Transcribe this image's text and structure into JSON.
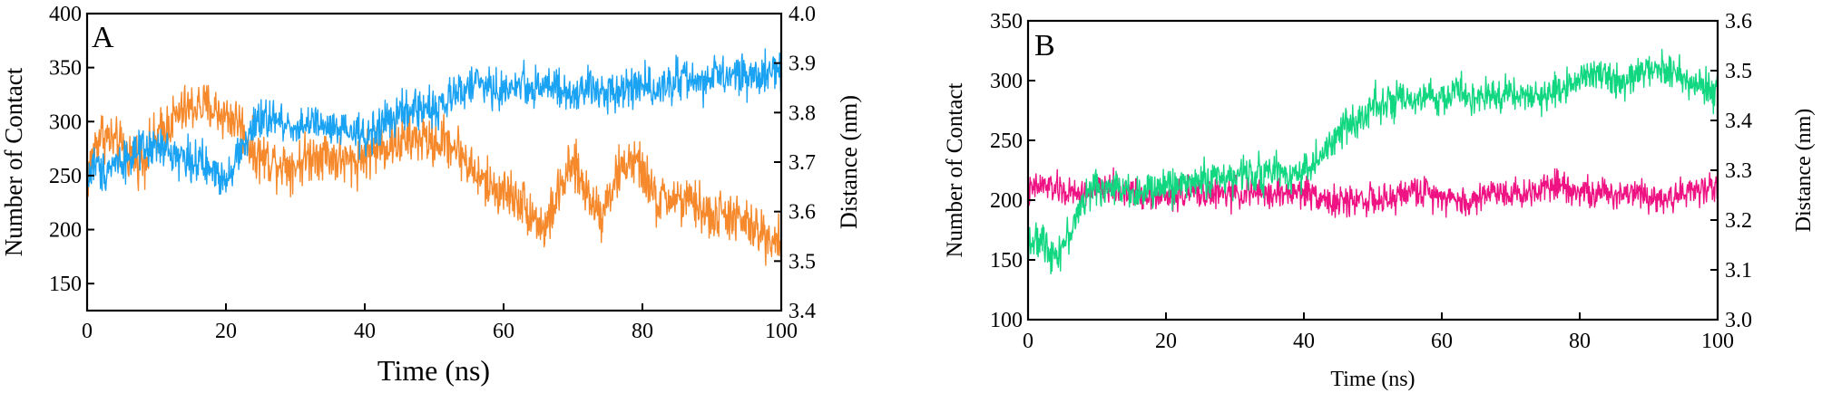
{
  "chart_data": [
    {
      "type": "line",
      "panel_label": "A",
      "xlabel": "Time (ns)",
      "ylabel_left": "Number of Contact",
      "ylabel_right": "Distance (nm)",
      "xlim": [
        0,
        100
      ],
      "ylim_left": [
        125,
        400
      ],
      "ylim_right": [
        3.4,
        4.0
      ],
      "xticks": [
        0,
        20,
        40,
        60,
        80,
        100
      ],
      "yticks_left": [
        150,
        200,
        250,
        300,
        350,
        400
      ],
      "yticks_right": [
        3.4,
        3.5,
        3.6,
        3.7,
        3.8,
        3.9,
        4.0
      ],
      "ytick_labels_right": [
        "3.4",
        "3.5",
        "3.6",
        "3.7",
        "3.8",
        "3.9",
        "4.0"
      ],
      "grid": false,
      "legend": "none",
      "series": [
        {
          "axis": "left",
          "color": "#f5892b",
          "noise": 18,
          "x": [
            0,
            1,
            2,
            4,
            6,
            8,
            10,
            12,
            14,
            16,
            18,
            20,
            22,
            24,
            26,
            28,
            30,
            32,
            34,
            36,
            38,
            40,
            42,
            44,
            46,
            48,
            50,
            52,
            54,
            56,
            58,
            60,
            62,
            64,
            66,
            68,
            70,
            72,
            74,
            76,
            78,
            80,
            82,
            84,
            86,
            88,
            90,
            92,
            94,
            96,
            98,
            100
          ],
          "values": [
            245,
            275,
            290,
            280,
            270,
            265,
            285,
            300,
            310,
            315,
            312,
            305,
            300,
            270,
            265,
            262,
            260,
            268,
            272,
            265,
            262,
            270,
            275,
            280,
            282,
            285,
            280,
            282,
            270,
            250,
            240,
            235,
            230,
            215,
            200,
            235,
            260,
            235,
            215,
            245,
            265,
            255,
            225,
            230,
            225,
            222,
            210,
            215,
            208,
            200,
            195,
            190
          ]
        },
        {
          "axis": "right",
          "color": "#1aa2f3",
          "noise": 0.032,
          "x": [
            0,
            1,
            2,
            4,
            6,
            8,
            10,
            12,
            14,
            16,
            18,
            20,
            22,
            24,
            26,
            28,
            30,
            32,
            34,
            36,
            38,
            40,
            42,
            44,
            46,
            48,
            50,
            52,
            54,
            56,
            58,
            60,
            62,
            64,
            66,
            68,
            70,
            72,
            74,
            76,
            78,
            80,
            82,
            84,
            86,
            88,
            90,
            92,
            94,
            96,
            98,
            100
          ],
          "values": [
            3.66,
            3.7,
            3.68,
            3.7,
            3.71,
            3.72,
            3.73,
            3.72,
            3.71,
            3.7,
            3.68,
            3.67,
            3.72,
            3.77,
            3.79,
            3.78,
            3.77,
            3.78,
            3.77,
            3.76,
            3.76,
            3.75,
            3.77,
            3.79,
            3.8,
            3.81,
            3.81,
            3.82,
            3.85,
            3.86,
            3.85,
            3.84,
            3.86,
            3.85,
            3.86,
            3.84,
            3.83,
            3.85,
            3.84,
            3.85,
            3.85,
            3.86,
            3.85,
            3.86,
            3.87,
            3.86,
            3.87,
            3.87,
            3.88,
            3.87,
            3.88,
            3.89
          ]
        }
      ]
    },
    {
      "type": "line",
      "panel_label": "B",
      "xlabel": "Time (ns)",
      "ylabel_left": "Number of Contact",
      "ylabel_right": "Distance (nm)",
      "xlim": [
        0,
        100
      ],
      "ylim_left": [
        100,
        350
      ],
      "ylim_right": [
        3.0,
        3.6
      ],
      "xticks": [
        0,
        20,
        40,
        60,
        80,
        100
      ],
      "yticks_left": [
        100,
        150,
        200,
        250,
        300,
        350
      ],
      "yticks_right": [
        3.0,
        3.1,
        3.2,
        3.3,
        3.4,
        3.5,
        3.6
      ],
      "ytick_labels_right": [
        "3.0",
        "3.1",
        "3.2",
        "3.3",
        "3.4",
        "3.5",
        "3.6"
      ],
      "grid": false,
      "legend": "none",
      "series": [
        {
          "axis": "left",
          "color": "#ee1283",
          "noise": 10,
          "x": [
            0,
            1,
            2,
            4,
            6,
            8,
            10,
            12,
            14,
            16,
            18,
            20,
            22,
            24,
            26,
            28,
            30,
            32,
            34,
            36,
            38,
            40,
            42,
            44,
            46,
            48,
            50,
            52,
            54,
            56,
            58,
            60,
            62,
            64,
            66,
            68,
            70,
            72,
            74,
            76,
            78,
            80,
            82,
            84,
            86,
            88,
            90,
            92,
            94,
            96,
            98,
            100
          ],
          "values": [
            205,
            210,
            212,
            210,
            205,
            205,
            208,
            210,
            208,
            205,
            205,
            203,
            205,
            207,
            206,
            205,
            205,
            206,
            205,
            205,
            206,
            207,
            205,
            198,
            198,
            202,
            200,
            198,
            205,
            208,
            206,
            205,
            200,
            197,
            205,
            208,
            206,
            205,
            210,
            215,
            212,
            208,
            205,
            205,
            206,
            208,
            205,
            200,
            205,
            207,
            210,
            212
          ]
        },
        {
          "axis": "right",
          "color": "#11d781",
          "noise": 0.028,
          "x": [
            0,
            1,
            2,
            4,
            6,
            8,
            10,
            12,
            14,
            16,
            18,
            20,
            22,
            24,
            26,
            28,
            30,
            32,
            34,
            36,
            38,
            40,
            42,
            44,
            46,
            48,
            50,
            52,
            54,
            56,
            58,
            60,
            62,
            64,
            66,
            68,
            70,
            72,
            74,
            76,
            78,
            80,
            82,
            84,
            86,
            88,
            90,
            92,
            94,
            96,
            98,
            100
          ],
          "values": [
            3.17,
            3.15,
            3.16,
            3.13,
            3.17,
            3.24,
            3.27,
            3.26,
            3.27,
            3.25,
            3.26,
            3.27,
            3.27,
            3.28,
            3.28,
            3.29,
            3.28,
            3.3,
            3.29,
            3.3,
            3.29,
            3.3,
            3.32,
            3.35,
            3.39,
            3.4,
            3.44,
            3.43,
            3.44,
            3.43,
            3.45,
            3.44,
            3.46,
            3.45,
            3.44,
            3.45,
            3.46,
            3.45,
            3.44,
            3.46,
            3.47,
            3.49,
            3.5,
            3.49,
            3.47,
            3.49,
            3.5,
            3.51,
            3.49,
            3.48,
            3.47,
            3.45
          ]
        }
      ]
    }
  ]
}
